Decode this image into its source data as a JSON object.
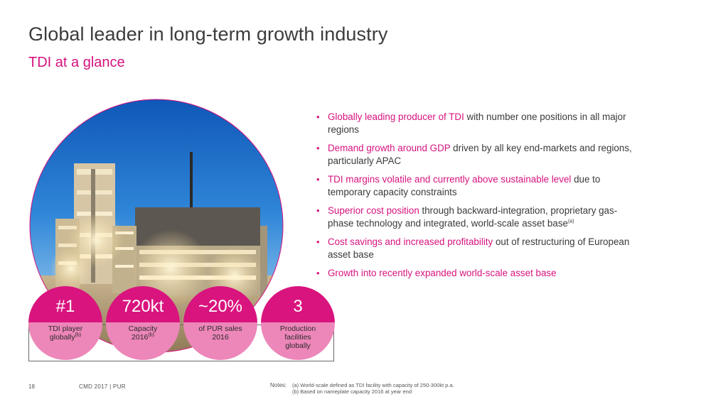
{
  "slide": {
    "title": "Global leader in long-term growth industry",
    "subtitle": "TDI at a glance"
  },
  "kpis": [
    {
      "value": "#1",
      "label_lines": [
        "TDI player",
        "globally"
      ],
      "superscript": "(b)"
    },
    {
      "value": "720kt",
      "label_lines": [
        "Capacity",
        "2016"
      ],
      "superscript": "(b)"
    },
    {
      "value": "~20%",
      "label_lines": [
        "of PUR sales",
        "2016"
      ],
      "superscript": ""
    },
    {
      "value": "3",
      "label_lines": [
        "Production",
        "facilities",
        "globally"
      ],
      "superscript": ""
    }
  ],
  "bullets": [
    {
      "highlight": "Globally leading producer of TDI",
      "text": " with number one positions in all major regions",
      "superscript": ""
    },
    {
      "highlight": "Demand growth around GDP",
      "text": " driven by all key end-markets and regions, particularly APAC",
      "superscript": ""
    },
    {
      "highlight": "TDI margins volatile and currently above sustainable level",
      "text": " due to temporary capacity constraints",
      "superscript": ""
    },
    {
      "highlight": "Superior cost position",
      "text": " through backward-integration, proprietary gas-phase technology and integrated, world-scale asset base",
      "superscript": "(a)"
    },
    {
      "highlight": "Cost savings and increased profitability",
      "text": " out of restructuring of European asset base",
      "superscript": ""
    },
    {
      "highlight": "Growth into recently expanded world-scale asset base",
      "text": "",
      "superscript": ""
    }
  ],
  "footer": {
    "page_number": "18",
    "source": "CMD 2017 | PUR",
    "notes_label": "Notes:",
    "note_a": "(a) World-scale defined as TDI  facility with capacity of 250-300kt p.a.",
    "note_b": "(b) Based on nameplate capacity 2016 at year end"
  },
  "colors": {
    "accent": "#d6127e",
    "kpi_dark": "#d9147e",
    "kpi_light": "#ed86b9",
    "title_text": "#3c3c3c"
  }
}
